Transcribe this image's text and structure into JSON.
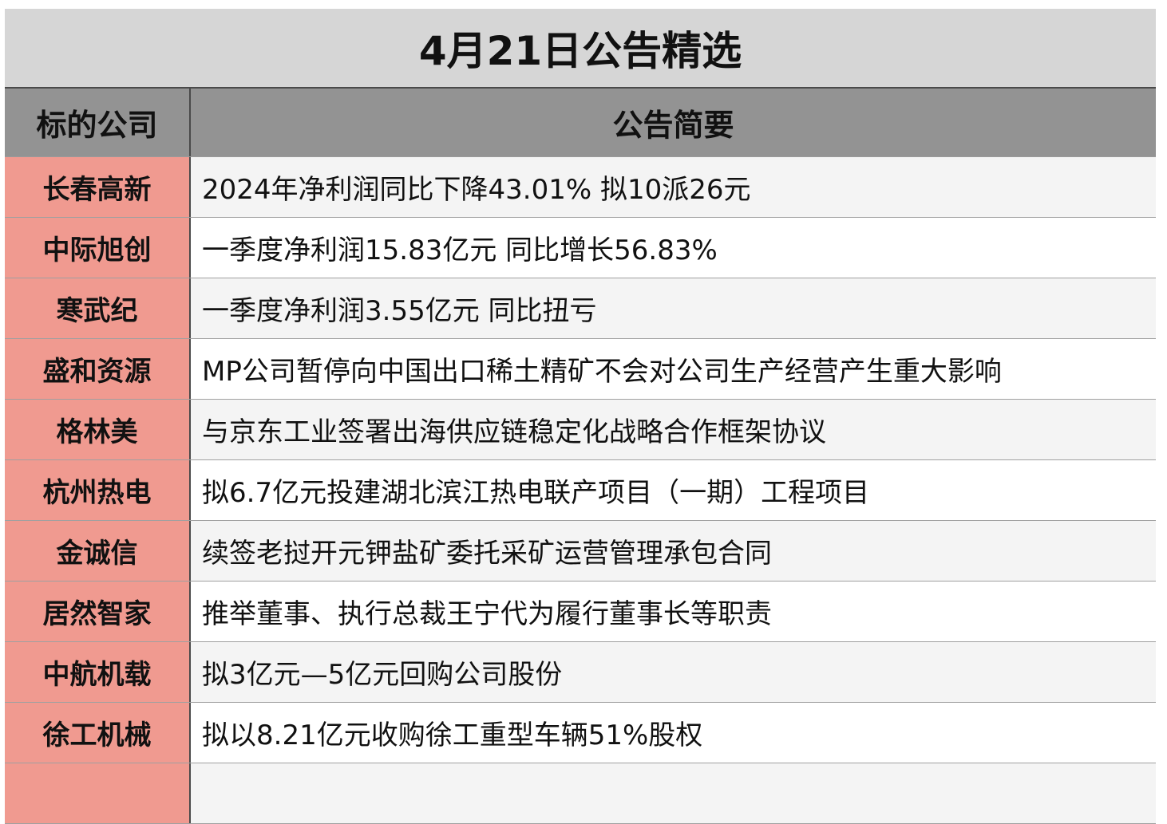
{
  "title": "4月21日公告精选",
  "headers": {
    "company": "标的公司",
    "summary": "公告简要"
  },
  "rows": [
    {
      "company": "长春高新",
      "summary": "2024年净利润同比下降43.01% 拟10派26元"
    },
    {
      "company": "中际旭创",
      "summary": "一季度净利润15.83亿元 同比增长56.83%"
    },
    {
      "company": "寒武纪",
      "summary": "一季度净利润3.55亿元 同比扭亏"
    },
    {
      "company": "盛和资源",
      "summary": "MP公司暂停向中国出口稀土精矿不会对公司生产经营产生重大影响"
    },
    {
      "company": "格林美",
      "summary": "与京东工业签署出海供应链稳定化战略合作框架协议"
    },
    {
      "company": "杭州热电",
      "summary": "拟6.7亿元投建湖北滨江热电联产项目（一期）工程项目"
    },
    {
      "company": "金诚信",
      "summary": "续签老挝开元钾盐矿委托采矿运营管理承包合同"
    },
    {
      "company": "居然智家",
      "summary": "推举董事、执行总裁王宁代为履行董事长等职责"
    },
    {
      "company": "中航机载",
      "summary": "拟3亿元—5亿元回购公司股份"
    },
    {
      "company": "徐工机械",
      "summary": "拟以8.21亿元收购徐工重型车辆51%股权"
    },
    {
      "company": "",
      "summary": ""
    }
  ],
  "colors": {
    "title_bg": "#d6d6d6",
    "header_bg": "#939393",
    "company_bg": "#f09a90",
    "row_alt_bg": "#f4f4f4"
  }
}
